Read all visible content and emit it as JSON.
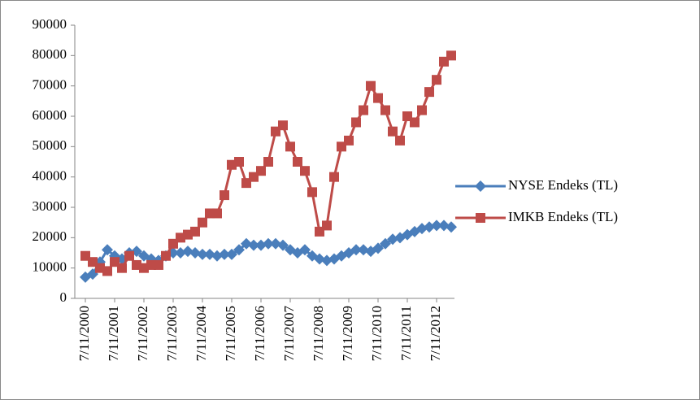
{
  "chart_data": {
    "type": "line",
    "x": [
      "7/11/2000",
      null,
      null,
      null,
      "7/11/2001",
      null,
      null,
      null,
      "7/11/2002",
      null,
      null,
      null,
      "7/11/2003",
      null,
      null,
      null,
      "7/11/2004",
      null,
      null,
      null,
      "7/11/2005",
      null,
      null,
      null,
      "7/11/2006",
      null,
      null,
      null,
      "7/11/2007",
      null,
      null,
      null,
      "7/11/2008",
      null,
      null,
      null,
      "7/11/2009",
      null,
      null,
      null,
      "7/11/2010",
      null,
      null,
      null,
      "7/11/2011",
      null,
      null,
      null,
      "7/11/2012",
      null,
      null
    ],
    "series": [
      {
        "name": "NYSE Endeks (TL)",
        "color": "#4a7ebb",
        "marker": "diamond",
        "values": [
          7000,
          8000,
          12000,
          16000,
          14000,
          13000,
          15000,
          15500,
          14000,
          13000,
          12500,
          14000,
          15000,
          15000,
          15500,
          15000,
          14500,
          14500,
          14000,
          14500,
          14500,
          16000,
          18000,
          17500,
          17500,
          18000,
          18000,
          17500,
          16000,
          15000,
          16000,
          14000,
          13000,
          12500,
          13000,
          14000,
          15000,
          16000,
          16000,
          15500,
          16500,
          18000,
          19500,
          20000,
          21000,
          22000,
          23000,
          23500,
          24000,
          24000,
          23500
        ]
      },
      {
        "name": "IMKB Endeks (TL)",
        "color": "#be4b48",
        "marker": "square",
        "values": [
          14000,
          12000,
          10000,
          9000,
          12000,
          10000,
          14000,
          11000,
          10000,
          11000,
          11000,
          14000,
          18000,
          20000,
          21000,
          22000,
          25000,
          28000,
          28000,
          34000,
          44000,
          45000,
          38000,
          40000,
          42000,
          45000,
          55000,
          57000,
          50000,
          45000,
          42000,
          35000,
          22000,
          24000,
          40000,
          50000,
          52000,
          58000,
          62000,
          70000,
          66000,
          62000,
          55000,
          52000,
          60000,
          58000,
          62000,
          68000,
          72000,
          78000,
          80000
        ]
      }
    ],
    "ylim": [
      0,
      90000
    ],
    "yticks": [
      0,
      10000,
      20000,
      30000,
      40000,
      50000,
      60000,
      70000,
      80000,
      90000
    ],
    "legend": "right"
  }
}
